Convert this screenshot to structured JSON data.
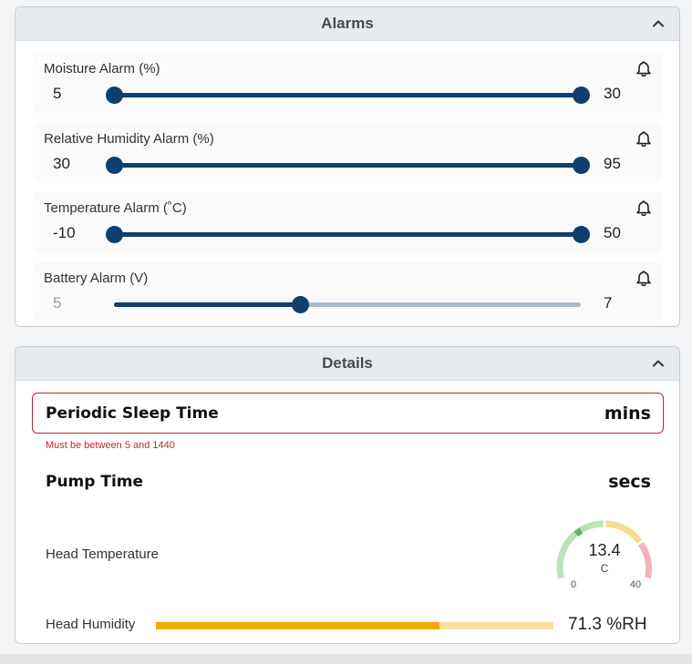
{
  "alarms": {
    "title": "Alarms",
    "rows": [
      {
        "label": "Moisture Alarm (%)",
        "min_text": "5",
        "max_text": "30",
        "low_frac": 0.0,
        "high_frac": 1.0,
        "disabled": false
      },
      {
        "label": "Relative Humidity Alarm (%)",
        "min_text": "30",
        "max_text": "95",
        "low_frac": 0.0,
        "high_frac": 1.0,
        "disabled": false
      },
      {
        "label": "Temperature Alarm (˚C)",
        "min_text": "-10",
        "max_text": "50",
        "low_frac": 0.0,
        "high_frac": 1.0,
        "disabled": false
      },
      {
        "label": "Battery Alarm (V)",
        "min_text": "5",
        "max_text": "7",
        "low_frac": null,
        "high_frac": 0.4,
        "disabled": true
      }
    ]
  },
  "details": {
    "title": "Details",
    "sleep": {
      "label": "Periodic Sleep Time",
      "unit": "mins",
      "error": "Must be between 5 and 1440"
    },
    "pump": {
      "label": "Pump Time",
      "unit": "secs"
    },
    "head_temperature": {
      "label": "Head Temperature",
      "value": "13.4",
      "unit": "C",
      "min": "0",
      "max": "40",
      "value_num": 13.4,
      "min_num": 0,
      "max_num": 40
    },
    "head_humidity": {
      "label": "Head Humidity",
      "value_text": "71.3 %RH",
      "fraction": 0.713
    }
  },
  "colors": {
    "slider": "#0f3f6e",
    "slider_track": "#a7bccd",
    "error": "#c1272d",
    "humidity_fill": "#f2a900",
    "humidity_track": "#f8dfa0",
    "gauge_green": "#b9e3b9",
    "gauge_yellow": "#f8dc8e",
    "gauge_red": "#f3b2bf",
    "gauge_needle": "#5cb85c"
  },
  "icons": {
    "collapse": "chevron-up-icon",
    "alarm": "bell-icon"
  }
}
